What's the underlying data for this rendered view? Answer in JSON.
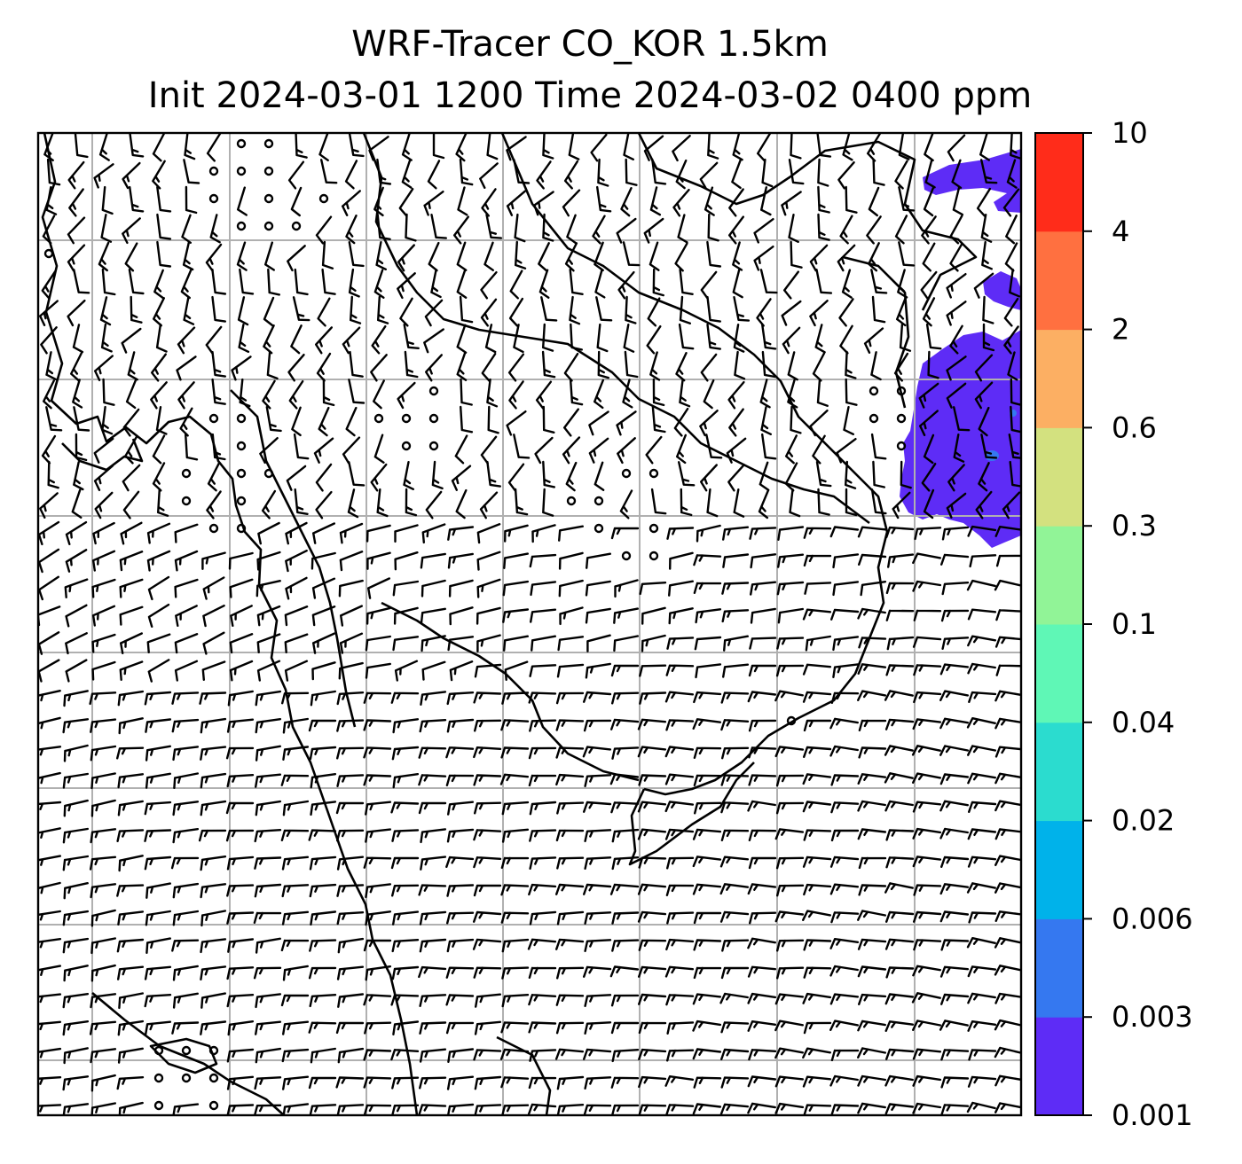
{
  "title": {
    "line1": "WRF-Tracer CO_KOR 1.5km",
    "line2": "Init 2024-03-01 1200 Time 2024-03-02 0400 ppm"
  },
  "colorbar": {
    "levels": [
      "0.001",
      "0.003",
      "0.006",
      "0.02",
      "0.04",
      "0.1",
      "0.3",
      "0.6",
      "2",
      "4",
      "10"
    ],
    "colors": [
      "#5e2cf6",
      "#3578f0",
      "#00b2ea",
      "#2bdccf",
      "#5ff7b6",
      "#91f497",
      "#d3e17f",
      "#fcaf63",
      "#ff7040",
      "#ff2c1a"
    ]
  },
  "plume": {
    "color": "#5e2cf6",
    "accent_color": "#3578f0",
    "location": "north-east edge of domain"
  },
  "wind_barbs": {
    "symbol": "wind-barb",
    "calm_symbol": "calm-circle"
  },
  "map_layers": [
    "coastlines",
    "lat-lon-gridlines",
    "wind-barbs",
    "tracer-concentration"
  ]
}
